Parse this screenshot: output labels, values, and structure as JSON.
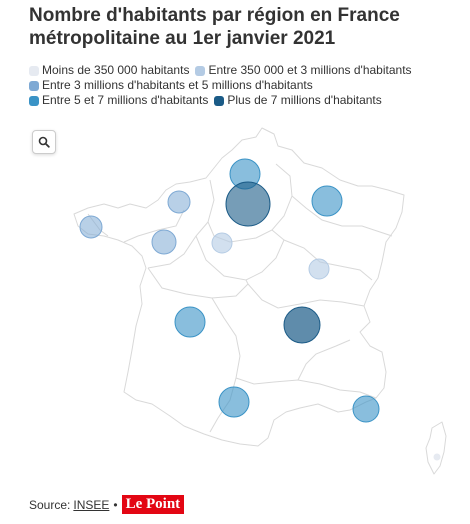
{
  "title": "Nombre d'habitants par région en France métropolitaine au 1er janvier 2021",
  "legend": [
    {
      "label": "Moins de 350 000 habitants",
      "color": "#e6eaf1"
    },
    {
      "label": "Entre 350 000 et 3 millions d'habitants",
      "color": "#b4cbe4"
    },
    {
      "label": "Entre 3 millions d'habitants et 5 millions d'habitants",
      "color": "#7ea9d4"
    },
    {
      "label": "Entre 5 et 7 millions d'habitants",
      "color": "#3a93c6"
    },
    {
      "label": "Plus de 7 millions d'habitants",
      "color": "#1b5b87"
    }
  ],
  "search_icon": "search-icon",
  "source": {
    "prefix": "Source:",
    "link": "INSEE",
    "separator": "•",
    "logo": "Le Point"
  },
  "map": {
    "region_fill": "#ffffff",
    "region_stroke": "#d9d9d9"
  }
}
